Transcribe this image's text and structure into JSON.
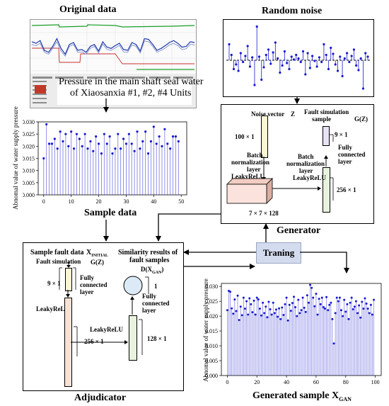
{
  "colors": {
    "stem": "#1a1ad0",
    "gen_input_bar": "#fcf5d2",
    "disc_input_bar": "#fcf5d2",
    "disc_hidden_bar": "#f8e2d6",
    "disc_fc_bar": "#e8f3de",
    "gen_fc_bar": "#e8f3de",
    "gen_input_bar2": "#e8e3f5",
    "block": "#fbe2dc",
    "circle": "#dce9f7",
    "training_box": "#d3dbef"
  },
  "original": {
    "title": "Original data",
    "caption_line1": "Pressure in the main shaft seal water",
    "caption_line2": "of Xiaosanxia #1, #2, #4 Units"
  },
  "noise": {
    "title": "Random noise"
  },
  "sample": {
    "title": "Sample data",
    "ylabel": "Abnomal value of water supply pressure"
  },
  "generator": {
    "title": "Generator",
    "noise_vector_label": "Noise vector",
    "noise_vector_symbol": "Z",
    "input_dim": "100 × 1",
    "layer1_line1": "Batch",
    "layer1_line2": "normalization",
    "layer1_line3": "layer",
    "layer1_line4": "LeakyReLU",
    "block_dim": "7 × 7 × 128",
    "layer2_line1": "Batch",
    "layer2_line2": "normalization",
    "layer2_line3": "layer",
    "layer2_line4": "LeakyReLU",
    "fc_dim": "256 × 1",
    "output_label_line1": "Fault simulation",
    "output_label_line2": "sample",
    "output_symbol": "G(Z)",
    "output_dim": "9 × 1",
    "fc_label_line1": "Fully",
    "fc_label_line2": "connected",
    "fc_label_line3": "layer"
  },
  "training": {
    "label": "Traning"
  },
  "adjudicator": {
    "title": "Adjudicator",
    "sample_label": "Sample fault data",
    "sample_symbol": "X",
    "sample_symbol_sub": "INITIAL",
    "fault_sim_label": "Fault simulation",
    "fault_sim_symbol": "G(Z)",
    "input_dim": "9 × 1",
    "fc1_line1": "Fully",
    "fc1_line2": "connected",
    "fc1_line3": "layer",
    "act1": "LeakyReLU",
    "hidden_dim": "256 × 1",
    "act2": "LeakyReLU",
    "fc2_dim": "128 × 1",
    "fc2_line1": "Fully",
    "fc2_line2": "connected",
    "fc2_line3": "layer",
    "result_line1": "Similarity results of",
    "result_line2": "fault samples",
    "result_symbol": "D(X",
    "result_symbol_sub": "GAN",
    "result_symbol_end": ")",
    "output_dim": "1"
  },
  "generated": {
    "title": "Generated sample",
    "title_symbol": "X",
    "title_symbol_sub": "GAN",
    "ylabel": "Abnomal value of water supply pressure"
  },
  "chart_data": [
    {
      "type": "stem",
      "name": "sample_data",
      "ylim": [
        0.0,
        0.03
      ],
      "xlim": [
        -2,
        52
      ],
      "xticks": [
        0,
        10,
        20,
        30,
        40,
        50
      ],
      "yticks": [
        "0.000",
        "0.005",
        "0.010",
        "0.015",
        "0.020",
        "0.025",
        "0.030"
      ],
      "x": [
        0,
        1,
        2,
        3,
        4,
        5,
        6,
        7,
        8,
        9,
        10,
        11,
        12,
        13,
        14,
        15,
        16,
        17,
        18,
        19,
        20,
        21,
        22,
        23,
        24,
        25,
        26,
        27,
        28,
        29,
        30,
        31,
        32,
        33,
        34,
        35,
        36,
        37,
        38,
        39,
        40,
        41,
        42,
        43,
        44,
        45,
        46,
        47,
        48,
        49
      ],
      "values": [
        0.015,
        0.029,
        0.021,
        0.021,
        0.023,
        0.019,
        0.026,
        0.022,
        0.025,
        0.02,
        0.026,
        0.019,
        0.025,
        0.023,
        0.02,
        0.025,
        0.019,
        0.022,
        0.018,
        0.024,
        0.021,
        0.017,
        0.025,
        0.021,
        0.024,
        0.017,
        0.019,
        0.025,
        0.019,
        0.023,
        0.021,
        0.025,
        0.021,
        0.018,
        0.026,
        0.019,
        0.022,
        0.026,
        0.017,
        0.022,
        0.028,
        0.021,
        0.024,
        0.02,
        0.027,
        0.021,
        0.019,
        0.024,
        0.024,
        0.022
      ]
    },
    {
      "type": "stem",
      "name": "generated_sample",
      "ylim": [
        0.0,
        0.031
      ],
      "xlim": [
        -4,
        104
      ],
      "xticks": [
        0,
        20,
        40,
        60,
        80,
        100
      ],
      "yticks": [
        "0.000",
        "0.005",
        "0.010",
        "0.015",
        "0.020",
        "0.025",
        "0.030"
      ],
      "x": [
        0,
        1,
        2,
        3,
        4,
        5,
        6,
        7,
        8,
        9,
        10,
        11,
        12,
        13,
        14,
        15,
        16,
        17,
        18,
        19,
        20,
        21,
        22,
        23,
        24,
        25,
        26,
        27,
        28,
        29,
        30,
        31,
        32,
        33,
        34,
        35,
        36,
        37,
        38,
        39,
        40,
        41,
        42,
        43,
        44,
        45,
        46,
        47,
        48,
        49,
        50,
        51,
        52,
        53,
        54,
        55,
        56,
        57,
        58,
        59,
        60,
        61,
        62,
        63,
        64,
        65,
        66,
        67,
        68,
        69,
        70,
        71,
        72,
        73,
        74,
        75,
        76,
        77,
        78,
        79,
        80,
        81,
        82,
        83,
        84,
        85,
        86,
        87,
        88,
        89,
        90,
        91,
        92,
        93,
        94,
        95,
        96,
        97,
        98,
        99
      ],
      "values": [
        0.022,
        0.0285,
        0.0282,
        0.0226,
        0.0208,
        0.0256,
        0.0217,
        0.0269,
        0.0187,
        0.0232,
        0.0203,
        0.0262,
        0.0225,
        0.025,
        0.0205,
        0.026,
        0.024,
        0.0213,
        0.0252,
        0.0205,
        0.0262,
        0.0256,
        0.0225,
        0.0202,
        0.0245,
        0.021,
        0.0232,
        0.0196,
        0.0248,
        0.0223,
        0.0205,
        0.0245,
        0.021,
        0.0222,
        0.0198,
        0.0226,
        0.019,
        0.0229,
        0.0204,
        0.024,
        0.0262,
        0.0185,
        0.0238,
        0.0218,
        0.0244,
        0.0265,
        0.023,
        0.02,
        0.0255,
        0.021,
        0.022,
        0.0262,
        0.0228,
        0.0214,
        0.027,
        0.0245,
        0.0305,
        0.0295,
        0.0262,
        0.0233,
        0.0275,
        0.0205,
        0.0258,
        0.024,
        0.0262,
        0.023,
        0.0225,
        0.0264,
        0.022,
        0.0238,
        0.0245,
        0.019,
        0.0108,
        0.021,
        0.0262,
        0.025,
        0.0262,
        0.022,
        0.02,
        0.0255,
        0.0215,
        0.024,
        0.019,
        0.0245,
        0.0262,
        0.0223,
        0.0232,
        0.025,
        0.021,
        0.0236,
        0.0195,
        0.0248,
        0.0225,
        0.026,
        0.0242,
        0.0225,
        0.021,
        0.0238,
        0.0205,
        0.0255
      ]
    },
    {
      "type": "stem",
      "name": "random_noise",
      "ylim": [
        -1.0,
        1.0
      ],
      "x": [
        0,
        1,
        2,
        3,
        4,
        5,
        6,
        7,
        8,
        9,
        10,
        11,
        12,
        13,
        14,
        15,
        16,
        17,
        18,
        19,
        20,
        21,
        22,
        23,
        24,
        25,
        26,
        27,
        28,
        29,
        30,
        31,
        32,
        33,
        34,
        35,
        36,
        37,
        38,
        39,
        40,
        41,
        42,
        43,
        44,
        45,
        46,
        47,
        48,
        49,
        50,
        51,
        52,
        53,
        54,
        55,
        56,
        57,
        58,
        59,
        60
      ],
      "values": [
        0.45,
        0.15,
        -0.25,
        -0.12,
        -0.3,
        0.2,
        -0.05,
        0.12,
        0.4,
        -0.18,
        0.08,
        -0.7,
        0.95,
        0.1,
        -0.55,
        -0.2,
        0.15,
        0.3,
        -0.1,
        0.22,
        0.5,
        0.05,
        -0.35,
        -0.15,
        0.25,
        -0.08,
        -0.25,
        0.1,
        0.02,
        0.15,
        0.05,
        -0.05,
        0.25,
        -0.4,
        0.2,
        -0.22,
        0.12,
        -0.02,
        -0.18,
        0.08,
        -0.05,
        0.45,
        0.15,
        -0.25,
        0.35,
        0.18,
        -0.12,
        -0.3,
        0.1,
        -0.45,
        0.05,
        0.2,
        -0.05,
        0.12,
        0.3,
        -0.15,
        -0.28,
        0.05,
        -0.8,
        0.2,
        0.1
      ]
    },
    {
      "type": "line",
      "name": "original_data_thumbnail",
      "series": [
        {
          "values": [
            0.62,
            0.58,
            0.65,
            0.4,
            0.35,
            0.5,
            0.7,
            0.45,
            0.3,
            0.55,
            0.6,
            0.4,
            0.42,
            0.35,
            0.5,
            0.55,
            0.38,
            0.62,
            0.48,
            0.45,
            0.52,
            0.58,
            0.42,
            0.4,
            0.6,
            0.55,
            0.38,
            0.7,
            0.68,
            0.55,
            0.4,
            0.45,
            0.52,
            0.6,
            0.65,
            0.58,
            0.48,
            0.5,
            0.62,
            0.6
          ]
        },
        {
          "values": [
            0.55,
            0.52,
            0.58,
            0.35,
            0.3,
            0.45,
            0.62,
            0.38,
            0.25,
            0.5,
            0.55,
            0.35,
            0.36,
            0.3,
            0.45,
            0.5,
            0.33,
            0.56,
            0.42,
            0.4,
            0.46,
            0.52,
            0.36,
            0.35,
            0.54,
            0.5,
            0.33,
            0.64,
            0.62,
            0.5,
            0.35,
            0.4,
            0.46,
            0.54,
            0.58,
            0.52,
            0.42,
            0.44,
            0.56,
            0.54
          ]
        }
      ]
    }
  ]
}
